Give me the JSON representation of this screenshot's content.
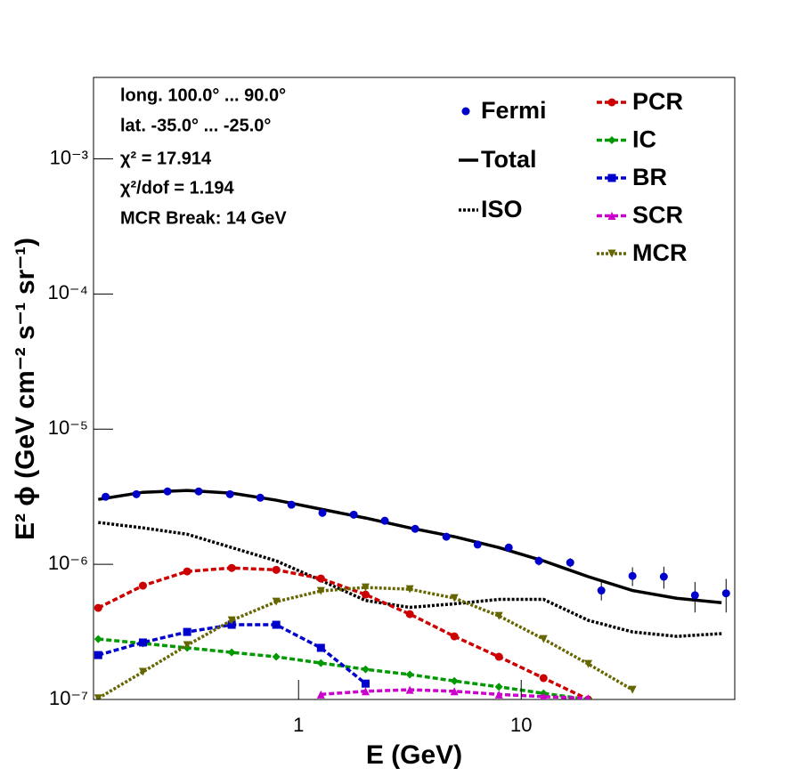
{
  "chart_data": {
    "type": "line",
    "xlog": true,
    "ylog": true,
    "xlabel": "E (GeV)",
    "ylabel": "E² ϕ (GeV cm⁻² s⁻¹ sr⁻¹)",
    "annotations": [
      "long. 100.0° ... 90.0°",
      "lat. -35.0° ... -25.0°",
      "χ² = 17.914",
      "χ²/dof = 1.194",
      "MCR Break: 14 GeV"
    ],
    "xlim": [
      0.12,
      91
    ],
    "ylim": [
      1e-07,
      0.004
    ],
    "xticks": [
      1,
      10
    ],
    "yticks": [
      {
        "value": 1e-07,
        "label": "10⁻⁷"
      },
      {
        "value": 1e-06,
        "label": "10⁻⁶"
      },
      {
        "value": 1e-05,
        "label": "10⁻⁵"
      },
      {
        "value": 0.0001,
        "label": "10⁻⁴"
      },
      {
        "value": 0.001,
        "label": "10⁻³"
      }
    ],
    "x": [
      0.126,
      0.2,
      0.316,
      0.501,
      0.794,
      1.26,
      2.0,
      3.16,
      5.01,
      7.94,
      12.6,
      20,
      31.6,
      50.1,
      79.4
    ],
    "points": {
      "name": "Fermi",
      "color": "#0000cc",
      "x": [
        0.136,
        0.187,
        0.258,
        0.356,
        0.492,
        0.673,
        0.929,
        1.28,
        1.77,
        2.44,
        3.34,
        4.61,
        6.37,
        8.79,
        12.0,
        16.6,
        22.9,
        31.6,
        43.7,
        60.3,
        83.2
      ],
      "values": [
        3.16e-06,
        3.3e-06,
        3.46e-06,
        3.46e-06,
        3.3e-06,
        3.11e-06,
        2.76e-06,
        2.4e-06,
        2.33e-06,
        2.1e-06,
        1.83e-06,
        1.6e-06,
        1.4e-06,
        1.33e-06,
        1.06e-06,
        1.03e-06,
        6.4e-07,
        8.2e-07,
        8.1e-07,
        5.9e-07,
        6.1e-07
      ],
      "errors": [
        8e-08,
        8e-08,
        8e-08,
        8e-08,
        8e-08,
        8e-08,
        7e-08,
        6e-08,
        6e-08,
        5e-08,
        5e-08,
        4e-08,
        4e-08,
        6e-08,
        8e-08,
        8e-08,
        1e-07,
        1.3e-07,
        1.5e-07,
        1.5e-07,
        1.7e-07
      ]
    },
    "series": [
      {
        "name": "Total",
        "color": "#000000",
        "style": "solid",
        "marker": "none",
        "values": [
          3.02e-06,
          3.41e-06,
          3.52e-06,
          3.36e-06,
          2.98e-06,
          2.56e-06,
          2.2e-06,
          1.86e-06,
          1.6e-06,
          1.33e-06,
          1.06e-06,
          8.1e-07,
          6.4e-07,
          5.6e-07,
          5.2e-07
        ]
      },
      {
        "name": "ISO",
        "color": "#000000",
        "style": "dotted",
        "marker": "none",
        "values": [
          2.04e-06,
          1.86e-06,
          1.67e-06,
          1.33e-06,
          1.06e-06,
          7.6e-07,
          5.4e-07,
          4.8e-07,
          5.1e-07,
          5.5e-07,
          5.5e-07,
          3.85e-07,
          3.16e-07,
          2.93e-07,
          3.07e-07
        ]
      },
      {
        "name": "PCR",
        "color": "#cc0000",
        "style": "dashed",
        "marker": "circle",
        "values": [
          4.76e-07,
          6.95e-07,
          8.86e-07,
          9.4e-07,
          9.1e-07,
          7.85e-07,
          5.97e-07,
          4.28e-07,
          2.93e-07,
          2.07e-07,
          1.44e-07,
          1e-07,
          null,
          null,
          null
        ]
      },
      {
        "name": "IC",
        "color": "#009900",
        "style": "dashed",
        "marker": "diamond",
        "values": [
          2.8e-07,
          2.6e-07,
          2.41e-07,
          2.23e-07,
          2.07e-07,
          1.86e-07,
          1.67e-07,
          1.53e-07,
          1.37e-07,
          1.24e-07,
          1.11e-07,
          1e-07,
          null,
          null,
          null
        ]
      },
      {
        "name": "BR",
        "color": "#0000cc",
        "style": "dashed",
        "marker": "square",
        "values": [
          2.13e-07,
          2.64e-07,
          3.16e-07,
          3.57e-07,
          3.57e-07,
          2.41e-07,
          1.31e-07,
          null,
          null,
          null,
          null,
          null,
          null,
          null,
          null
        ]
      },
      {
        "name": "SCR",
        "color": "#cc00cc",
        "style": "dashed",
        "marker": "triangle-up",
        "values": [
          null,
          null,
          null,
          null,
          null,
          1.09e-07,
          1.15e-07,
          1.18e-07,
          1.15e-07,
          1.09e-07,
          1.05e-07,
          1.02e-07,
          null,
          null,
          null
        ]
      },
      {
        "name": "MCR",
        "color": "#666600",
        "style": "dotted",
        "marker": "triangle-down",
        "values": [
          1.02e-07,
          1.6e-07,
          2.52e-07,
          3.85e-07,
          5.29e-07,
          6.35e-07,
          6.74e-07,
          6.54e-07,
          5.62e-07,
          4.15e-07,
          2.8e-07,
          1.83e-07,
          1.18e-07,
          null,
          null
        ]
      }
    ]
  }
}
